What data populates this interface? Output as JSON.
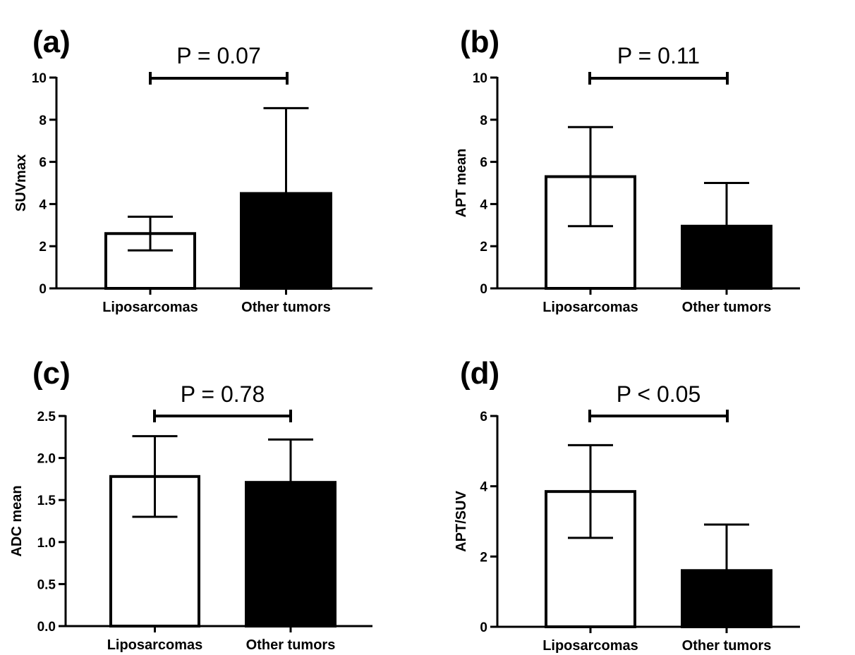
{
  "chart_data": [
    {
      "type": "bar",
      "panel": "(a)",
      "ylabel": "SUVmax",
      "categories": [
        "Liposarcomas",
        "Other tumors"
      ],
      "values": [
        2.6,
        4.5
      ],
      "errors": [
        0.8,
        4.05
      ],
      "ylim": [
        0,
        10
      ],
      "yticks": [
        "0",
        "2",
        "4",
        "6",
        "8",
        "10"
      ],
      "ytick_values": [
        0,
        2,
        4,
        6,
        8,
        10
      ],
      "fills": [
        "#ffffff",
        "#000000"
      ],
      "pvalue": "P = 0.07"
    },
    {
      "type": "bar",
      "panel": "(b)",
      "ylabel": "APT mean",
      "categories": [
        "Liposarcomas",
        "Other tumors"
      ],
      "values": [
        5.3,
        2.95
      ],
      "errors": [
        2.35,
        2.05
      ],
      "ylim": [
        0,
        10
      ],
      "yticks": [
        "0",
        "2",
        "4",
        "6",
        "8",
        "10"
      ],
      "ytick_values": [
        0,
        2,
        4,
        6,
        8,
        10
      ],
      "fills": [
        "#ffffff",
        "#000000"
      ],
      "pvalue": "P = 0.11"
    },
    {
      "type": "bar",
      "panel": "(c)",
      "ylabel": "ADC mean",
      "categories": [
        "Liposarcomas",
        "Other tumors"
      ],
      "values": [
        1.78,
        1.71
      ],
      "errors": [
        0.48,
        0.51
      ],
      "ylim": [
        0,
        2.5
      ],
      "yticks": [
        "0.0",
        "0.5",
        "1.0",
        "1.5",
        "2.0",
        "2.5"
      ],
      "ytick_values": [
        0,
        0.5,
        1.0,
        1.5,
        2.0,
        2.5
      ],
      "fills": [
        "#ffffff",
        "#000000"
      ],
      "pvalue": "P = 0.78"
    },
    {
      "type": "bar",
      "panel": "(d)",
      "ylabel": "APT/SUV",
      "categories": [
        "Liposarcomas",
        "Other tumors"
      ],
      "values": [
        3.85,
        1.6
      ],
      "errors": [
        1.32,
        1.31
      ],
      "ylim": [
        0,
        6
      ],
      "yticks": [
        "0",
        "2",
        "4",
        "6"
      ],
      "ytick_values": [
        0,
        2,
        4,
        6
      ],
      "fills": [
        "#ffffff",
        "#000000"
      ],
      "pvalue": "P < 0.05"
    }
  ]
}
